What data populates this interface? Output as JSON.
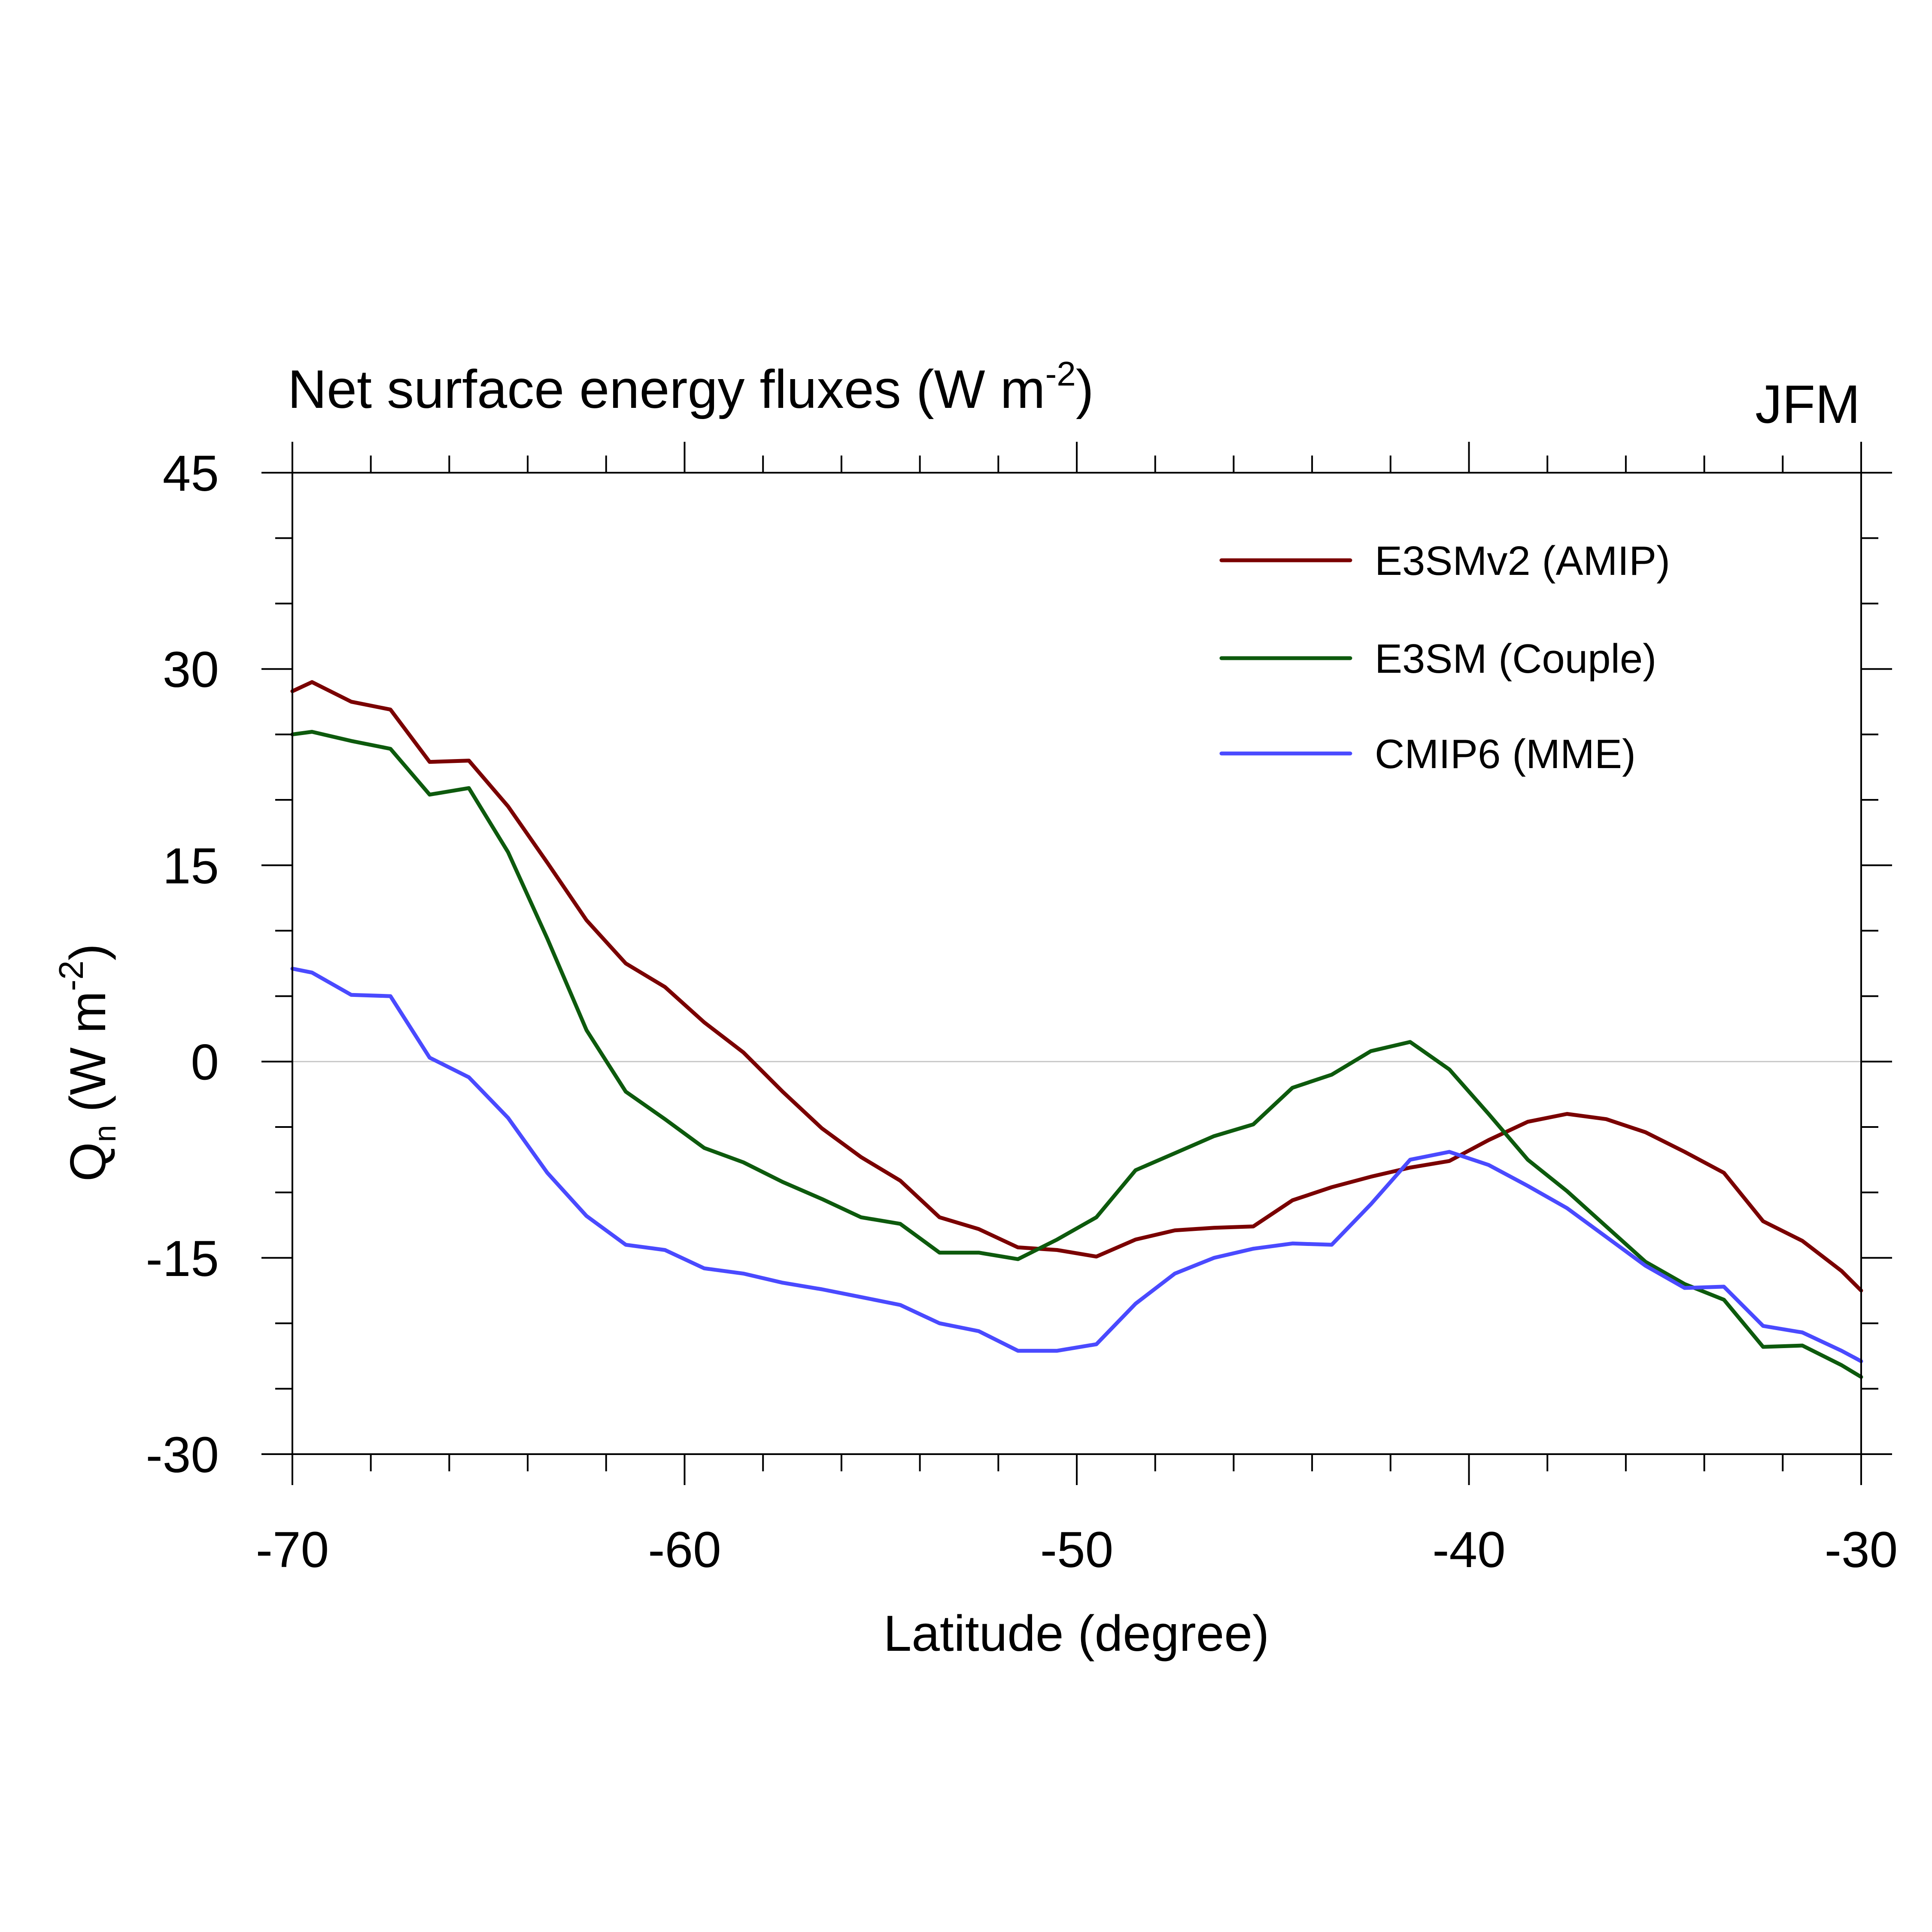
{
  "chart_data": {
    "type": "line",
    "title": "Net surface energy fluxes (W m",
    "title_sup": "-2",
    "title_end": ")",
    "season": "JFM",
    "xlabel": "Latitude (degree)",
    "ylabel_main": "Q",
    "ylabel_sub": "n",
    "ylabel_unit": "(W m",
    "ylabel_sup": "-2",
    "ylabel_end": ")",
    "xlim": [
      -70,
      -30
    ],
    "ylim": [
      -30,
      45
    ],
    "xticks": [
      -70,
      -60,
      -50,
      -40,
      -30
    ],
    "xtick_labels": [
      "-70",
      "-60",
      "-50",
      "-40",
      "-30"
    ],
    "yticks": [
      -30,
      -15,
      0,
      15,
      30,
      45
    ],
    "ytick_labels": [
      "-30",
      "-15",
      "0",
      "15",
      "30",
      "45"
    ],
    "zero_line": true,
    "legend_position": "top-right",
    "series": [
      {
        "name": "E3SMv2 (AMIP)",
        "color": "#7a0000",
        "x": [
          -70,
          -69.5,
          -68.5,
          -67.5,
          -66.5,
          -65.5,
          -64.5,
          -63.5,
          -62.5,
          -61.5,
          -60.5,
          -59.5,
          -58.5,
          -57.5,
          -56.5,
          -55.5,
          -54.5,
          -53.5,
          -52.5,
          -51.5,
          -50.5,
          -49.5,
          -48.5,
          -47.5,
          -46.5,
          -45.5,
          -44.5,
          -43.5,
          -42.5,
          -41.5,
          -40.5,
          -39.5,
          -38.5,
          -37.5,
          -36.5,
          -35.5,
          -34.5,
          -33.5,
          -32.5,
          -31.5,
          -30.5,
          -30
        ],
        "values": [
          28.3,
          29,
          27.5,
          26.9,
          22.9,
          23,
          19.5,
          15.2,
          10.8,
          7.5,
          5.7,
          3,
          0.7,
          -2.3,
          -5.1,
          -7.3,
          -9.1,
          -11.9,
          -12.8,
          -14.2,
          -14.4,
          -14.9,
          -13.6,
          -12.9,
          -12.7,
          -12.6,
          -10.6,
          -9.6,
          -8.8,
          -8.1,
          -7.6,
          -6.0,
          -4.6,
          -4.0,
          -4.4,
          -5.4,
          -6.9,
          -8.5,
          -12.2,
          -13.7,
          -16.0,
          -17.5
        ]
      },
      {
        "name": "E3SM (Couple)",
        "color": "#0d5a0d",
        "x": [
          -70,
          -69.5,
          -68.5,
          -67.5,
          -66.5,
          -65.5,
          -64.5,
          -63.5,
          -62.5,
          -61.5,
          -60.5,
          -59.5,
          -58.5,
          -57.5,
          -56.5,
          -55.5,
          -54.5,
          -53.5,
          -52.5,
          -51.5,
          -50.5,
          -49.5,
          -48.5,
          -47.5,
          -46.5,
          -45.5,
          -44.5,
          -43.5,
          -42.5,
          -41.5,
          -40.5,
          -39.5,
          -38.5,
          -37.5,
          -36.5,
          -35.5,
          -34.5,
          -33.5,
          -32.5,
          -31.5,
          -30.5,
          -30
        ],
        "values": [
          25,
          25.2,
          24.5,
          23.9,
          20.4,
          20.9,
          16,
          9.4,
          2.4,
          -2.3,
          -4.4,
          -6.6,
          -7.7,
          -9.2,
          -10.5,
          -11.9,
          -12.4,
          -14.6,
          -14.6,
          -15.1,
          -13.6,
          -11.9,
          -8.3,
          -7.0,
          -5.7,
          -4.8,
          -2.0,
          -1.0,
          0.8,
          1.5,
          -0.6,
          -4.0,
          -7.5,
          -9.9,
          -12.6,
          -15.3,
          -17.0,
          -18.2,
          -21.8,
          -21.7,
          -23.2,
          -24.1
        ]
      },
      {
        "name": "CMIP6 (MME)",
        "color": "#4a4aff",
        "x": [
          -70,
          -69.5,
          -68.5,
          -67.5,
          -66.5,
          -65.5,
          -64.5,
          -63.5,
          -62.5,
          -61.5,
          -60.5,
          -59.5,
          -58.5,
          -57.5,
          -56.5,
          -55.5,
          -54.5,
          -53.5,
          -52.5,
          -51.5,
          -50.5,
          -49.5,
          -48.5,
          -47.5,
          -46.5,
          -45.5,
          -44.5,
          -43.5,
          -42.5,
          -41.5,
          -40.5,
          -39.5,
          -38.5,
          -37.5,
          -36.5,
          -35.5,
          -34.5,
          -33.5,
          -32.5,
          -31.5,
          -30.5,
          -30
        ],
        "values": [
          7.1,
          6.8,
          5.1,
          5.0,
          0.3,
          -1.2,
          -4.3,
          -8.5,
          -11.8,
          -14.0,
          -14.4,
          -15.8,
          -16.2,
          -16.9,
          -17.4,
          -18.0,
          -18.6,
          -20.0,
          -20.6,
          -22.1,
          -22.1,
          -21.6,
          -18.5,
          -16.2,
          -15.0,
          -14.3,
          -13.9,
          -14.0,
          -10.9,
          -7.5,
          -6.9,
          -7.9,
          -9.5,
          -11.2,
          -13.4,
          -15.6,
          -17.3,
          -17.2,
          -20.2,
          -20.7,
          -22.1,
          -22.9
        ]
      }
    ]
  }
}
